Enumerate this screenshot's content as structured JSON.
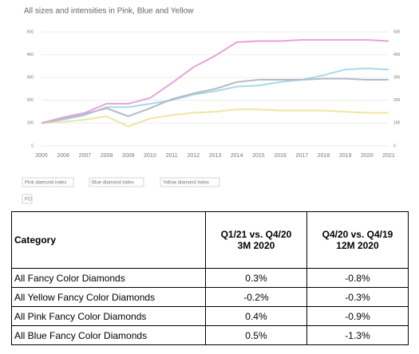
{
  "chart_data": {
    "type": "line",
    "title": "All sizes and intensities in Pink, Blue and Yellow",
    "x": [
      2005,
      2006,
      2007,
      2008,
      2009,
      2010,
      2011,
      2012,
      2013,
      2014,
      2015,
      2016,
      2017,
      2018,
      2019,
      2020,
      2021
    ],
    "xlim": [
      2005,
      2021
    ],
    "xticks": [
      2005,
      2006,
      2007,
      2008,
      2009,
      2010,
      2011,
      2012,
      2013,
      2014,
      2015,
      2016,
      2017,
      2018,
      2019,
      2020,
      2021
    ],
    "ylim": [
      0,
      500
    ],
    "yticks": [
      0,
      100,
      200,
      300,
      400,
      500
    ],
    "grid": true,
    "series": [
      {
        "name": "Pink diamond index",
        "color": "#e6a3d9",
        "values": [
          100,
          125,
          145,
          185,
          185,
          210,
          275,
          345,
          395,
          455,
          460,
          460,
          465,
          465,
          465,
          465,
          460
        ]
      },
      {
        "name": "Blue diamond index",
        "color": "#a9d9e6",
        "values": [
          100,
          115,
          135,
          170,
          170,
          185,
          200,
          225,
          240,
          260,
          265,
          280,
          290,
          310,
          335,
          340,
          335
        ]
      },
      {
        "name": "Yellow diamond index",
        "color": "#efe6a0",
        "values": [
          100,
          105,
          115,
          130,
          85,
          120,
          135,
          145,
          150,
          160,
          160,
          155,
          155,
          155,
          150,
          145,
          145
        ]
      },
      {
        "name": "FCI",
        "color": "#b3bac8",
        "values": [
          100,
          120,
          140,
          165,
          130,
          165,
          205,
          230,
          250,
          280,
          290,
          290,
          290,
          295,
          295,
          290,
          290
        ]
      }
    ]
  },
  "table": {
    "header": [
      [
        "Category"
      ],
      [
        "Q1/21 vs. Q4/20",
        "3M 2020"
      ],
      [
        "Q4/20 vs. Q4/19",
        "12M 2020"
      ]
    ],
    "rows": [
      [
        "All Fancy Color Diamonds",
        "0.3%",
        "-0.8%"
      ],
      [
        "All Yellow Fancy Color Diamonds",
        "-0.2%",
        "-0.3%"
      ],
      [
        "All Pink Fancy Color Diamonds",
        "0.4%",
        "-0.9%"
      ],
      [
        "All Blue Fancy Color Diamonds",
        "0.5%",
        "-1.3%"
      ]
    ]
  }
}
